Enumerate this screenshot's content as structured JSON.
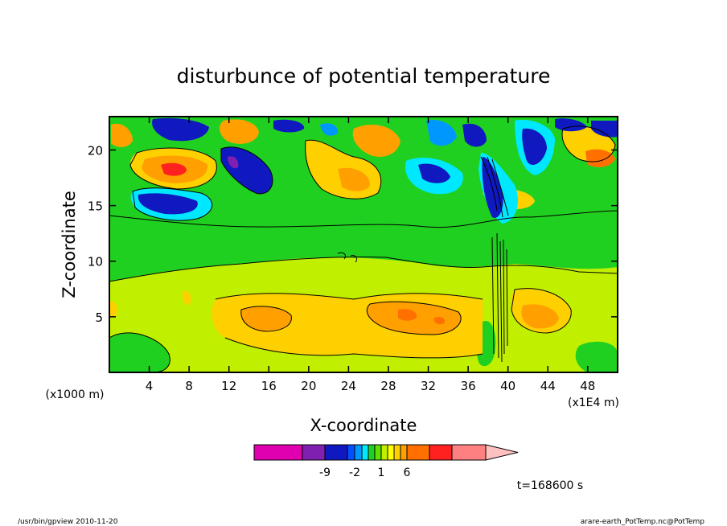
{
  "chart_data": {
    "type": "heatmap",
    "title": "disturbunce of potential temperature",
    "xlabel": "X-coordinate",
    "ylabel": "Z-coordinate",
    "x_unit_note": "(x1E4 m)",
    "y_unit_note": "(x1000 m)",
    "x_ticks": [
      4,
      8,
      12,
      16,
      20,
      24,
      28,
      32,
      36,
      40,
      44,
      48
    ],
    "y_ticks": [
      5,
      10,
      15,
      20
    ],
    "xlim": [
      0,
      51
    ],
    "ylim": [
      0,
      23
    ],
    "colorbar": {
      "labels": [
        "-9",
        "-2",
        "1",
        "6"
      ],
      "colors": [
        "#e000b0",
        "#8020b0",
        "#1018c0",
        "#0050ff",
        "#0098ff",
        "#00e8ff",
        "#20d020",
        "#60e000",
        "#c0f000",
        "#ffff00",
        "#ffd000",
        "#ffa000",
        "#ff7000",
        "#ff2020",
        "#ff8080",
        "#ffc0c0"
      ]
    },
    "time_label": "t=168600 s",
    "grid": false,
    "legend": "bottom"
  },
  "footer": {
    "left": "/usr/bin/gpview   2010-11-20",
    "right": "arare-earth_PotTemp.nc@PotTemp"
  }
}
